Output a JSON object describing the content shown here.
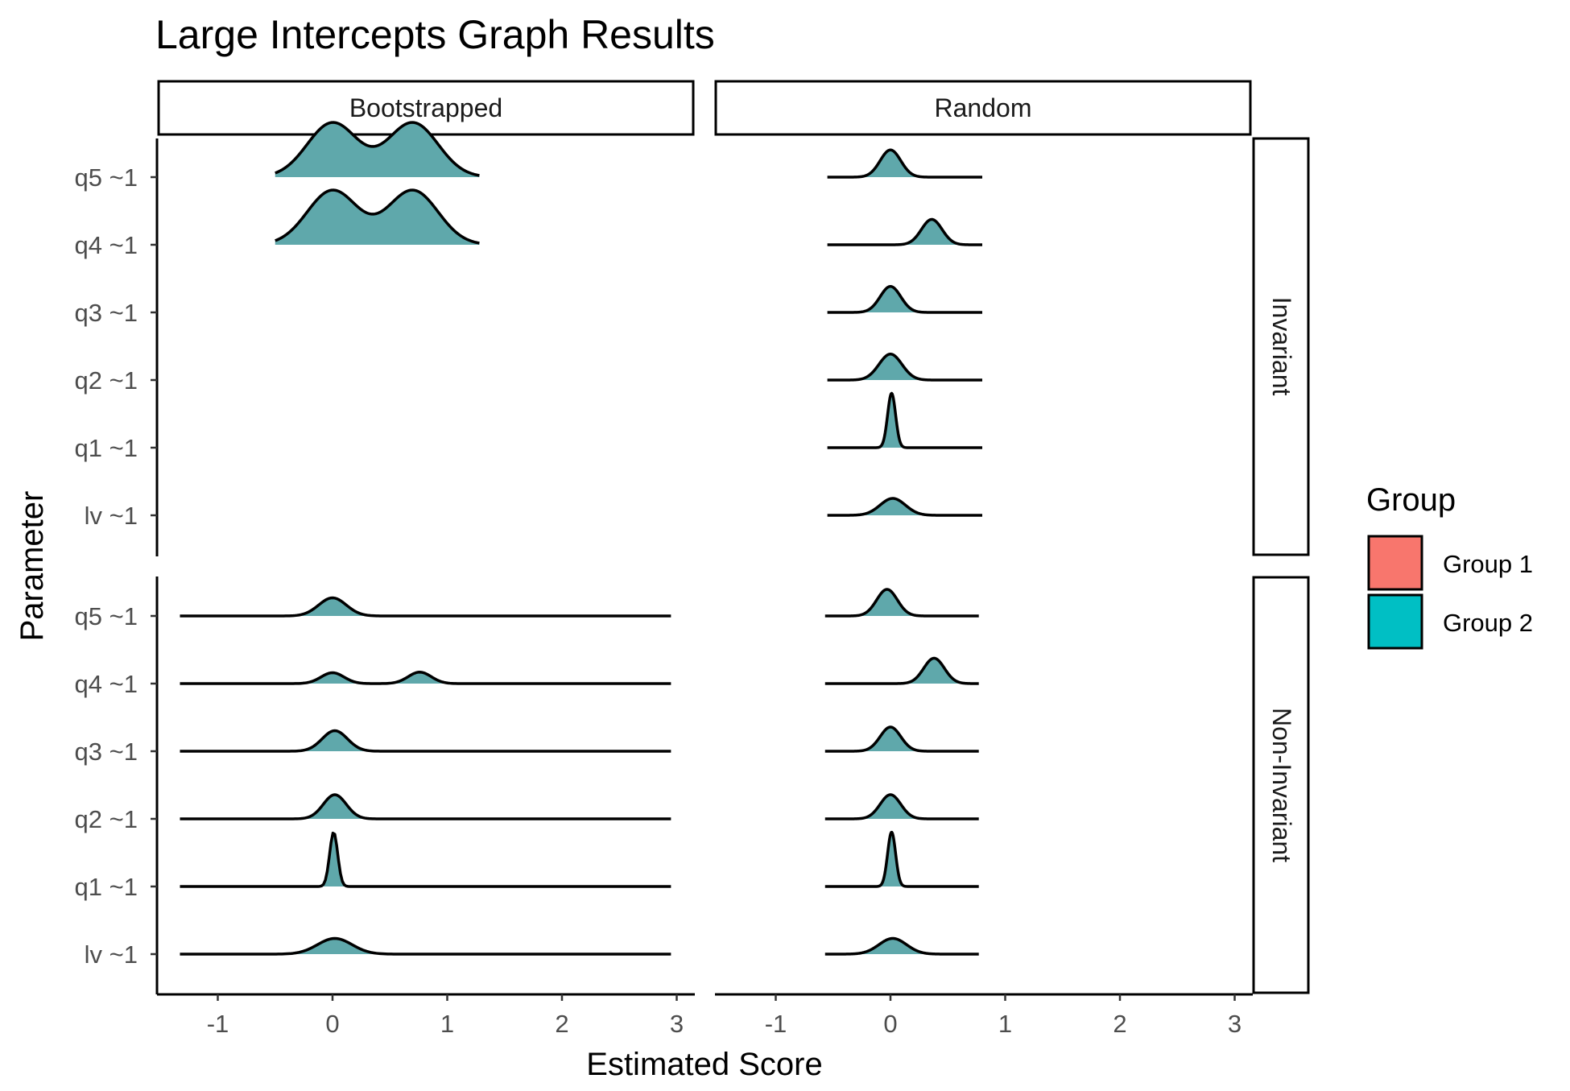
{
  "chart_data": {
    "type": "ridgeline",
    "title": "Large Intercepts Graph Results",
    "xlabel": "Estimated Score",
    "ylabel": "Parameter",
    "xlim": [
      -1.5,
      3.15
    ],
    "x_ticks": [
      -1,
      0,
      1,
      2,
      3
    ],
    "x_tick_labels": [
      "-1",
      "0",
      "1",
      "2",
      "3"
    ],
    "y_categories": [
      "q5 ~1",
      "q4 ~1",
      "q3 ~1",
      "q2 ~1",
      "q1 ~1",
      "lv ~1"
    ],
    "facet_columns": [
      "Bootstrapped",
      "Random"
    ],
    "facet_rows": [
      "Invariant",
      "Non-Invariant"
    ],
    "grid": false,
    "legend": {
      "title": "Group",
      "position": "right",
      "entries": [
        {
          "label": "Group 1",
          "color": "#F8766D"
        },
        {
          "label": "Group 2",
          "color": "#00BFC4"
        }
      ]
    },
    "panels": [
      {
        "column": "Bootstrapped",
        "row": "Invariant",
        "ridges": [
          {
            "param": "q5 ~1",
            "group": "Group 2",
            "range": [
              -0.5,
              1.28
            ],
            "peaks": [
              [
                0.0,
                0.22,
                0.9
              ],
              [
                0.7,
                0.22,
                0.9
              ]
            ]
          },
          {
            "param": "q4 ~1",
            "group": "Group 2",
            "range": [
              -0.5,
              1.28
            ],
            "peaks": [
              [
                0.0,
                0.22,
                0.9
              ],
              [
                0.7,
                0.22,
                0.9
              ]
            ]
          }
        ]
      },
      {
        "column": "Random",
        "row": "Invariant",
        "ridges": [
          {
            "param": "q5 ~1",
            "group": "Group 2",
            "range": [
              -0.55,
              0.8
            ],
            "peaks": [
              [
                0.0,
                0.09,
                0.45
              ]
            ]
          },
          {
            "param": "q4 ~1",
            "group": "Group 2",
            "range": [
              -0.55,
              0.8
            ],
            "peaks": [
              [
                0.36,
                0.09,
                0.42
              ]
            ]
          },
          {
            "param": "q3 ~1",
            "group": "Group 2",
            "range": [
              -0.55,
              0.8
            ],
            "peaks": [
              [
                0.0,
                0.09,
                0.43
              ]
            ]
          },
          {
            "param": "q2 ~1",
            "group": "Group 2",
            "range": [
              -0.55,
              0.8
            ],
            "peaks": [
              [
                0.0,
                0.1,
                0.43
              ]
            ]
          },
          {
            "param": "q1 ~1",
            "group": "Group 2",
            "range": [
              -0.55,
              0.8
            ],
            "peaks": [
              [
                0.01,
                0.035,
                0.9
              ]
            ]
          },
          {
            "param": "lv ~1",
            "group": "Group 2",
            "range": [
              -0.55,
              0.8
            ],
            "peaks": [
              [
                0.02,
                0.11,
                0.28
              ]
            ]
          }
        ]
      },
      {
        "column": "Bootstrapped",
        "row": "Non-Invariant",
        "ridges": [
          {
            "param": "q5 ~1",
            "group": "Group 2",
            "range": [
              -1.33,
              2.95
            ],
            "peaks": [
              [
                0.0,
                0.12,
                0.3
              ]
            ]
          },
          {
            "param": "q4 ~1",
            "group": "Group 2",
            "range": [
              -1.33,
              2.95
            ],
            "peaks": [
              [
                0.0,
                0.1,
                0.18
              ],
              [
                0.76,
                0.1,
                0.19
              ]
            ]
          },
          {
            "param": "q3 ~1",
            "group": "Group 2",
            "range": [
              -1.33,
              2.95
            ],
            "peaks": [
              [
                0.02,
                0.11,
                0.34
              ]
            ]
          },
          {
            "param": "q2 ~1",
            "group": "Group 2",
            "range": [
              -1.33,
              2.95
            ],
            "peaks": [
              [
                0.02,
                0.1,
                0.4
              ]
            ]
          },
          {
            "param": "q1 ~1",
            "group": "Group 2",
            "range": [
              -1.33,
              2.95
            ],
            "peaks": [
              [
                0.01,
                0.035,
                0.9
              ]
            ]
          },
          {
            "param": "lv ~1",
            "group": "Group 2",
            "range": [
              -1.33,
              2.95
            ],
            "peaks": [
              [
                0.02,
                0.15,
                0.26
              ]
            ]
          }
        ]
      },
      {
        "column": "Random",
        "row": "Non-Invariant",
        "ridges": [
          {
            "param": "q5 ~1",
            "group": "Group 2",
            "range": [
              -0.57,
              0.77
            ],
            "peaks": [
              [
                -0.03,
                0.09,
                0.44
              ]
            ]
          },
          {
            "param": "q4 ~1",
            "group": "Group 2",
            "range": [
              -0.57,
              0.77
            ],
            "peaks": [
              [
                0.38,
                0.09,
                0.42
              ]
            ]
          },
          {
            "param": "q3 ~1",
            "group": "Group 2",
            "range": [
              -0.57,
              0.77
            ],
            "peaks": [
              [
                0.0,
                0.09,
                0.4
              ]
            ]
          },
          {
            "param": "q2 ~1",
            "group": "Group 2",
            "range": [
              -0.57,
              0.77
            ],
            "peaks": [
              [
                0.0,
                0.09,
                0.4
              ]
            ]
          },
          {
            "param": "q1 ~1",
            "group": "Group 2",
            "range": [
              -0.57,
              0.77
            ],
            "peaks": [
              [
                0.01,
                0.035,
                0.9
              ]
            ]
          },
          {
            "param": "lv ~1",
            "group": "Group 2",
            "range": [
              -0.57,
              0.77
            ],
            "peaks": [
              [
                0.02,
                0.12,
                0.26
              ]
            ]
          }
        ]
      }
    ],
    "ridge_fill": "#5FA8AB",
    "ridge_line": "#000000"
  }
}
